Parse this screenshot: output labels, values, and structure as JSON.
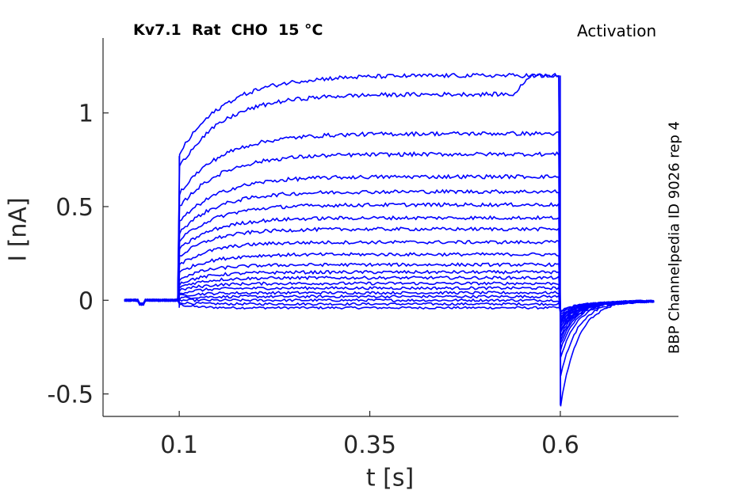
{
  "chart_data": {
    "type": "line",
    "title": "Kv7.1  Rat  CHO  15 °C",
    "protocol": "Activation",
    "source": "BBP Channelpedia ID 9026 rep 4",
    "xlabel": "t [s]",
    "ylabel": "I [nA]",
    "xlim": [
      0.0,
      0.755
    ],
    "ylim": [
      -0.62,
      1.4
    ],
    "xticks": [
      0.1,
      0.35,
      0.6
    ],
    "xtick_labels": [
      "0.1",
      "0.35",
      "0.6"
    ],
    "yticks": [
      -0.5,
      0,
      0.5,
      1
    ],
    "ytick_labels": [
      "-0.5",
      "0",
      "0.5",
      "1"
    ],
    "grid": false,
    "line_color": "#0000ff",
    "step_on": 0.1,
    "step_off": 0.6,
    "trace_end": 0.725,
    "steady_currents": [
      -0.04,
      -0.02,
      0.0,
      0.02,
      0.04,
      0.065,
      0.09,
      0.12,
      0.15,
      0.19,
      0.245,
      0.31,
      0.38,
      0.44,
      0.51,
      0.58,
      0.66,
      0.78,
      0.89,
      1.1,
      1.2
    ],
    "tail_minima": [
      -0.03,
      -0.04,
      -0.05,
      -0.06,
      -0.07,
      -0.08,
      -0.09,
      -0.1,
      -0.11,
      -0.12,
      -0.13,
      -0.14,
      -0.15,
      -0.16,
      -0.18,
      -0.2,
      -0.22,
      -0.25,
      -0.3,
      -0.4,
      -0.56
    ]
  }
}
